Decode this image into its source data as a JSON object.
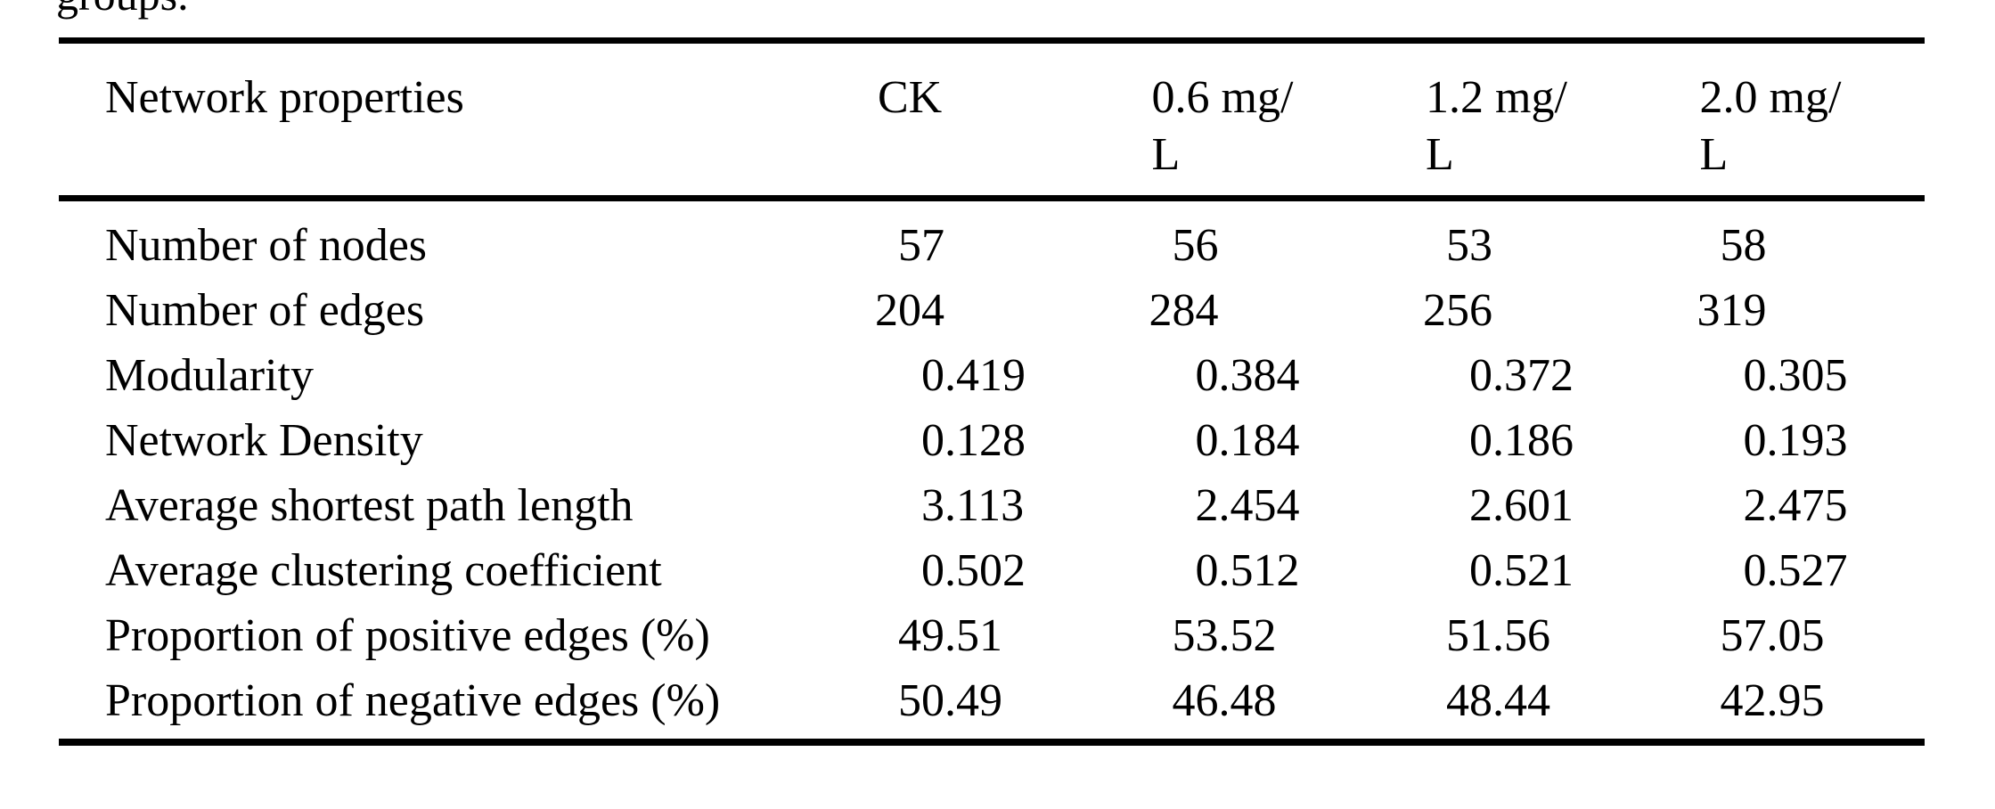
{
  "page": {
    "background_color": "#ffffff",
    "text_color": "#000000",
    "rule_color": "#000000"
  },
  "caption_fragment": "groups.",
  "table": {
    "columns": [
      {
        "label": "Network properties",
        "lines": [
          "Network properties"
        ]
      },
      {
        "label": "CK",
        "lines": [
          "CK"
        ]
      },
      {
        "label": "0.6 mg/L",
        "lines": [
          "0.6 mg/",
          "L"
        ]
      },
      {
        "label": "1.2 mg/L",
        "lines": [
          "1.2 mg/",
          "L"
        ]
      },
      {
        "label": "2.0 mg/L",
        "lines": [
          "2.0 mg/",
          "L"
        ]
      }
    ],
    "rows": [
      {
        "label": "Number of nodes",
        "values": [
          "57",
          "56",
          "53",
          "58"
        ]
      },
      {
        "label": "Number of edges",
        "values": [
          "204",
          "284",
          "256",
          "319"
        ]
      },
      {
        "label": "Modularity",
        "values": [
          "0.419",
          "0.384",
          "0.372",
          "0.305"
        ]
      },
      {
        "label": "Network Density",
        "values": [
          "0.128",
          "0.184",
          "0.186",
          "0.193"
        ]
      },
      {
        "label": "Average shortest path length",
        "values": [
          "3.113",
          "2.454",
          "2.601",
          "2.475"
        ]
      },
      {
        "label": "Average clustering coefficient",
        "values": [
          "0.502",
          "0.512",
          "0.521",
          "0.527"
        ]
      },
      {
        "label": "Proportion of positive edges (%)",
        "values": [
          "49.51",
          "53.52",
          "51.56",
          "57.05"
        ]
      },
      {
        "label": "Proportion of negative edges (%)",
        "values": [
          "50.49",
          "46.48",
          "48.44",
          "42.95"
        ]
      }
    ]
  }
}
